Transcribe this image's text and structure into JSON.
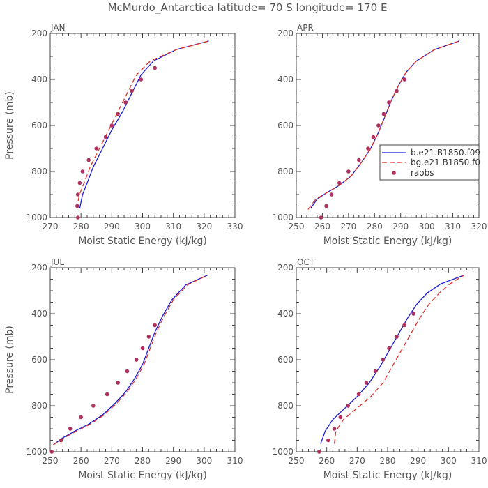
{
  "figure": {
    "title": "McMurdo_Antarctica  latitude= 70 S longitude= 170 E"
  },
  "colors": {
    "series_1": "#1a1ad6",
    "series_2": "#e0302a",
    "raobs": "#b03060",
    "axis": "#444444",
    "text": "#555555"
  },
  "legend": {
    "placement": "inside APR panel, middle-right",
    "entries": [
      "b.e21.B1850.f09",
      "bg.e21.B1850.f0",
      "raobs"
    ]
  },
  "chart_data": [
    {
      "type": "line",
      "panel_title": "JAN",
      "xlabel": "Moist Static Energy (kJ/kg)",
      "ylabel": "Pressure (mb)",
      "xlim": [
        270,
        330
      ],
      "ylim": [
        1000,
        200
      ],
      "x_ticks": [
        270,
        280,
        290,
        300,
        310,
        320,
        330
      ],
      "y_ticks": [
        1000,
        800,
        600,
        400,
        200
      ],
      "series": [
        {
          "x": [
            279.6,
            280.5,
            282.0,
            284.0,
            287.0,
            290.0,
            293.5,
            296.5,
            299.5,
            303.5,
            311.0,
            321.5
          ],
          "y": [
            960,
            900,
            850,
            780,
            700,
            620,
            540,
            460,
            380,
            320,
            270,
            233
          ]
        },
        {
          "x": [
            278.6,
            279.5,
            281.0,
            283.0,
            286.0,
            289.0,
            292.0,
            295.0,
            298.0,
            302.5,
            311.0,
            321.5
          ],
          "y": [
            960,
            900,
            850,
            780,
            700,
            620,
            540,
            460,
            380,
            320,
            270,
            233
          ]
        },
        {
          "x": [
            279.0,
            278.8,
            279.0,
            279.6,
            280.5,
            282.5,
            285.0,
            288.0,
            290.0,
            292.0,
            294.5,
            296.5,
            299.5,
            304.0
          ],
          "y": [
            1000,
            950,
            900,
            850,
            800,
            750,
            700,
            650,
            600,
            550,
            500,
            450,
            400,
            350
          ]
        }
      ]
    },
    {
      "type": "line",
      "panel_title": "APR",
      "xlabel": "Moist Static Energy (kJ/kg)",
      "ylabel": "",
      "xlim": [
        250,
        320
      ],
      "ylim": [
        1000,
        200
      ],
      "x_ticks": [
        250,
        260,
        270,
        280,
        290,
        300,
        310,
        320
      ],
      "y_ticks": [
        1000,
        800,
        600,
        400,
        200
      ],
      "series": [
        {
          "x": [
            255.5,
            258.0,
            262.0,
            266.5,
            271.0,
            275.0,
            278.5,
            281.5,
            284.0,
            286.5,
            289.0,
            292.0,
            296.0,
            303.0,
            312.5
          ],
          "y": [
            960,
            920,
            890,
            860,
            820,
            760,
            700,
            630,
            560,
            490,
            430,
            370,
            320,
            270,
            233
          ]
        },
        {
          "x": [
            254.5,
            257.5,
            262.0,
            266.5,
            271.0,
            275.0,
            278.5,
            281.5,
            284.0,
            286.5,
            289.0,
            292.0,
            296.0,
            303.0,
            312.5
          ],
          "y": [
            965,
            920,
            890,
            860,
            820,
            760,
            700,
            630,
            560,
            490,
            430,
            370,
            320,
            270,
            233
          ]
        },
        {
          "x": [
            259.5,
            261.5,
            263.5,
            266.5,
            270.0,
            274.0,
            277.5,
            279.5,
            281.5,
            283.5,
            285.5,
            288.5,
            291.5
          ],
          "y": [
            1000,
            950,
            900,
            850,
            800,
            750,
            700,
            650,
            600,
            550,
            500,
            450,
            400
          ]
        }
      ]
    },
    {
      "type": "line",
      "panel_title": "JUL",
      "xlabel": "Moist Static Energy (kJ/kg)",
      "ylabel": "Pressure (mb)",
      "xlim": [
        250,
        310
      ],
      "ylim": [
        1000,
        200
      ],
      "x_ticks": [
        250,
        260,
        270,
        280,
        290,
        300,
        310
      ],
      "y_ticks": [
        1000,
        800,
        600,
        400,
        200
      ],
      "series": [
        {
          "x": [
            251.0,
            254.0,
            258.0,
            262.5,
            267.0,
            271.0,
            274.5,
            277.5,
            280.0,
            282.0,
            284.0,
            286.5,
            289.5,
            294.0,
            301.0
          ],
          "y": [
            970,
            940,
            910,
            880,
            840,
            790,
            740,
            680,
            620,
            550,
            480,
            410,
            340,
            275,
            233
          ]
        },
        {
          "x": [
            251.0,
            254.5,
            258.5,
            263.0,
            267.5,
            271.5,
            275.0,
            278.0,
            280.5,
            282.5,
            284.5,
            287.0,
            290.0,
            294.5,
            301.0
          ],
          "y": [
            970,
            940,
            910,
            880,
            840,
            790,
            740,
            680,
            620,
            550,
            480,
            410,
            340,
            275,
            233
          ]
        },
        {
          "x": [
            250.5,
            253.5,
            256.5,
            260.0,
            264.0,
            268.5,
            272.0,
            275.0,
            278.0,
            280.0,
            282.0,
            284.0
          ],
          "y": [
            1000,
            950,
            900,
            850,
            800,
            750,
            700,
            650,
            600,
            550,
            500,
            450
          ]
        }
      ]
    },
    {
      "type": "line",
      "panel_title": "OCT",
      "xlabel": "Moist Static Energy (kJ/kg)",
      "ylabel": "",
      "xlim": [
        250,
        310
      ],
      "ylim": [
        1000,
        200
      ],
      "x_ticks": [
        250,
        260,
        270,
        280,
        290,
        300,
        310
      ],
      "y_ticks": [
        1000,
        800,
        600,
        400,
        200
      ],
      "series": [
        {
          "x": [
            258.0,
            259.5,
            262.0,
            266.0,
            270.0,
            274.0,
            277.5,
            280.5,
            283.5,
            286.5,
            289.5,
            293.0,
            297.5,
            305.0
          ],
          "y": [
            965,
            910,
            860,
            810,
            760,
            700,
            630,
            560,
            490,
            420,
            360,
            310,
            270,
            233
          ]
        },
        {
          "x": [
            262.5,
            263.0,
            265.5,
            270.0,
            274.5,
            278.5,
            281.5,
            284.5,
            287.5,
            290.5,
            293.5,
            297.0,
            300.5,
            305.0
          ],
          "y": [
            965,
            910,
            860,
            810,
            760,
            700,
            630,
            560,
            490,
            420,
            360,
            310,
            270,
            233
          ]
        },
        {
          "x": [
            257.5,
            260.5,
            262.5,
            264.5,
            267.0,
            270.5,
            273.0,
            276.0,
            278.5,
            280.5,
            283.0,
            285.5,
            288.5
          ],
          "y": [
            1000,
            950,
            900,
            850,
            800,
            750,
            700,
            650,
            600,
            550,
            500,
            450,
            400
          ]
        }
      ]
    }
  ]
}
